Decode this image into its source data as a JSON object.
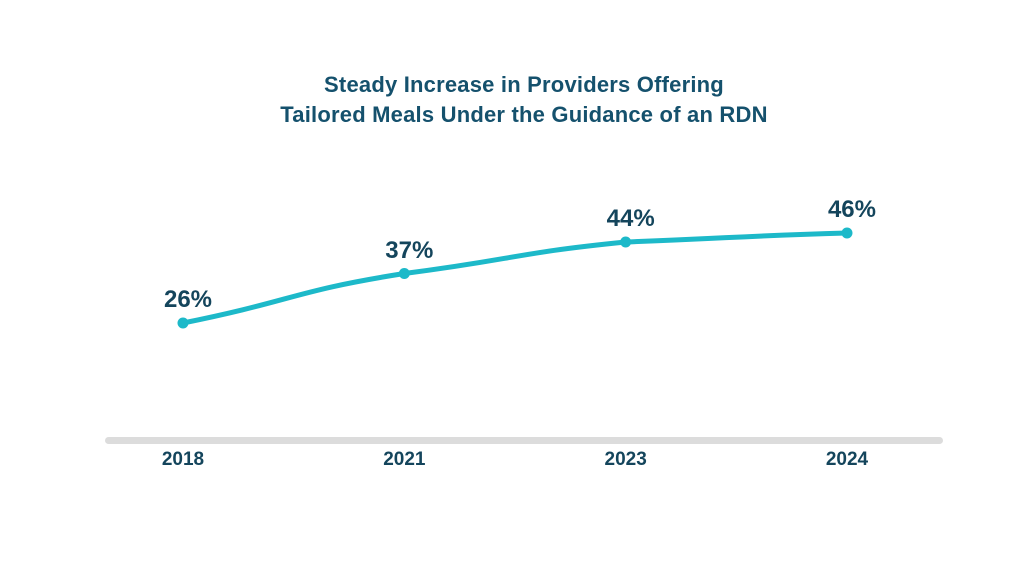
{
  "chart": {
    "title_line1": "Steady Increase in Providers Offering",
    "title_line2": "Tailored Meals Under the Guidance of an RDN"
  },
  "chart_data": {
    "type": "line",
    "categories": [
      "2018",
      "2021",
      "2023",
      "2024"
    ],
    "values": [
      26,
      37,
      44,
      46
    ],
    "point_labels": [
      "26%",
      "37%",
      "44%",
      "46%"
    ],
    "title": "Steady Increase in Providers Offering Tailored Meals Under the Guidance of an RDN",
    "xlabel": "",
    "ylabel": "",
    "ylim": [
      0,
      60
    ],
    "grid": false,
    "legend": "none",
    "line_color": "#1db9c9",
    "marker_color": "#1db9c9",
    "title_color": "#15516d",
    "label_color": "#14455c",
    "axis_color": "#dcdcdc",
    "background_color": "#ffffff"
  }
}
